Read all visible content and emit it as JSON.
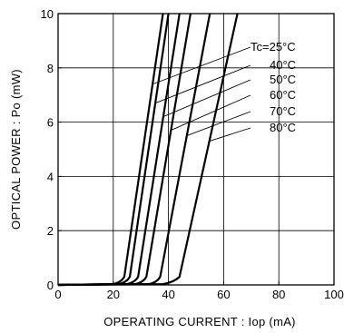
{
  "chart_data": {
    "type": "line",
    "title": "",
    "xlabel": "OPERATING  CURRENT : Iop (mA)",
    "ylabel": "OPTICAL  POWER : Po (mW)",
    "xlim": [
      0,
      100
    ],
    "ylim": [
      0,
      10
    ],
    "x_ticks": [
      0,
      20,
      40,
      60,
      80,
      100
    ],
    "y_ticks": [
      0,
      2,
      4,
      6,
      8,
      10
    ],
    "x_tick_labels": [
      "0",
      "20",
      "40",
      "60",
      "80",
      "100"
    ],
    "y_tick_labels": [
      "0",
      "2",
      "4",
      "6",
      "8",
      "10"
    ],
    "grid": true,
    "legend_position": "right, inside plot",
    "series": [
      {
        "name": "Tc=25°C",
        "points": [
          [
            0,
            0
          ],
          [
            20,
            0.03
          ],
          [
            23,
            0.1
          ],
          [
            24,
            0.3
          ],
          [
            38,
            10
          ]
        ]
      },
      {
        "name": "40°C",
        "points": [
          [
            0,
            0
          ],
          [
            22,
            0.03
          ],
          [
            25,
            0.1
          ],
          [
            26,
            0.3
          ],
          [
            40,
            10
          ]
        ]
      },
      {
        "name": "50°C",
        "points": [
          [
            0,
            0
          ],
          [
            25,
            0.03
          ],
          [
            28,
            0.1
          ],
          [
            29,
            0.3
          ],
          [
            44,
            10
          ]
        ]
      },
      {
        "name": "60°C",
        "points": [
          [
            0,
            0
          ],
          [
            28,
            0.03
          ],
          [
            31,
            0.1
          ],
          [
            32,
            0.3
          ],
          [
            48,
            10
          ]
        ]
      },
      {
        "name": "70°C",
        "points": [
          [
            0,
            0
          ],
          [
            33,
            0.03
          ],
          [
            36,
            0.1
          ],
          [
            37,
            0.3
          ],
          [
            55,
            10
          ]
        ]
      },
      {
        "name": "80°C",
        "points": [
          [
            0,
            0
          ],
          [
            38,
            0.03
          ],
          [
            42,
            0.1
          ],
          [
            44,
            0.3
          ],
          [
            65,
            10
          ]
        ]
      }
    ]
  }
}
